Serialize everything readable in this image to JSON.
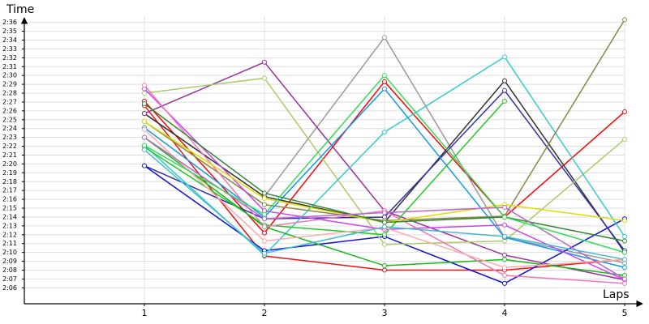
{
  "chart_data": {
    "type": "line",
    "y_label": "Time",
    "x_label": "Laps",
    "xlim": [
      0,
      5
    ],
    "xticks": [
      1,
      2,
      3,
      4,
      5
    ],
    "ylim": [
      124.2,
      156.7
    ],
    "yticks": [
      {
        "value": 126,
        "label": "2:06"
      },
      {
        "value": 127,
        "label": "2:07"
      },
      {
        "value": 128,
        "label": "2:08"
      },
      {
        "value": 129,
        "label": "2:09"
      },
      {
        "value": 130,
        "label": "2:10"
      },
      {
        "value": 131,
        "label": "2:11"
      },
      {
        "value": 132,
        "label": "2:12"
      },
      {
        "value": 133,
        "label": "2:13"
      },
      {
        "value": 134,
        "label": "2:14"
      },
      {
        "value": 135,
        "label": "2:15"
      },
      {
        "value": 136,
        "label": "2:16"
      },
      {
        "value": 137,
        "label": "2:17"
      },
      {
        "value": 138,
        "label": "2:18"
      },
      {
        "value": 139,
        "label": "2:19"
      },
      {
        "value": 140,
        "label": "2:20"
      },
      {
        "value": 141,
        "label": "2:21"
      },
      {
        "value": 142,
        "label": "2:22"
      },
      {
        "value": 143,
        "label": "2:23"
      },
      {
        "value": 144,
        "label": "2:24"
      },
      {
        "value": 145,
        "label": "2:25"
      },
      {
        "value": 146,
        "label": "2:26"
      },
      {
        "value": 147,
        "label": "2:27"
      },
      {
        "value": 148,
        "label": "2:28"
      },
      {
        "value": 149,
        "label": "2:29"
      },
      {
        "value": 150,
        "label": "2:30"
      },
      {
        "value": 151,
        "label": "2:31"
      },
      {
        "value": 152,
        "label": "2:32"
      },
      {
        "value": 153,
        "label": "2:33"
      },
      {
        "value": 154,
        "label": "2:34"
      },
      {
        "value": 155,
        "label": "2:35"
      },
      {
        "value": 156,
        "label": "2:36"
      }
    ],
    "grid": true,
    "x": [
      1,
      2,
      3,
      4,
      5
    ],
    "series": [
      {
        "color": "#ff0000",
        "values": [
          147.1,
          132.2,
          149.3,
          134.0,
          145.9
        ]
      },
      {
        "color": "#ee1111",
        "values": [
          146.6,
          129.6,
          128.0,
          128.0,
          129.2
        ]
      },
      {
        "color": "#999999",
        "values": [
          145.7,
          136.3,
          154.3,
          131.7,
          128.8
        ]
      },
      {
        "color": "#333333",
        "values": [
          145.7,
          136.3,
          133.4,
          149.4,
          130.0
        ]
      },
      {
        "color": "#1010dd",
        "values": [
          139.8,
          130.2,
          131.8,
          126.5,
          133.8
        ]
      },
      {
        "color": "#3030aa",
        "values": [
          139.8,
          133.8,
          134.0,
          148.3,
          130.2
        ]
      },
      {
        "color": "#993399",
        "values": [
          145.7,
          151.5,
          134.7,
          129.7,
          126.9
        ]
      },
      {
        "color": "#aacc66",
        "values": [
          148.0,
          149.7,
          130.9,
          131.3,
          142.8
        ]
      },
      {
        "color": "#33cccc",
        "values": [
          142.1,
          129.7,
          143.6,
          152.1,
          131.8
        ]
      },
      {
        "color": "#888844",
        "values": [
          144.8,
          135.4,
          133.6,
          134.1,
          156.3
        ]
      },
      {
        "color": "#1199ee",
        "values": [
          144.1,
          134.0,
          148.5,
          131.7,
          128.3
        ]
      },
      {
        "color": "#22cc22",
        "values": [
          141.9,
          133.1,
          132.0,
          147.1,
          null
        ]
      },
      {
        "color": "#11bb11",
        "values": [
          143.0,
          132.9,
          128.5,
          129.2,
          127.4
        ]
      },
      {
        "color": "#cc44ee",
        "values": [
          148.5,
          134.7,
          132.6,
          133.1,
          126.9
        ]
      },
      {
        "color": "#ee77bb",
        "values": [
          148.9,
          132.9,
          134.7,
          127.4,
          126.5
        ]
      },
      {
        "color": "#ffaaaa",
        "values": [
          143.9,
          131.3,
          132.8,
          128.3,
          129.2
        ]
      },
      {
        "color": "#dddd00",
        "values": [
          144.8,
          136.1,
          133.4,
          135.4,
          133.6
        ]
      },
      {
        "color": "#338833",
        "values": [
          146.8,
          136.7,
          133.4,
          134.0,
          131.3
        ]
      },
      {
        "color": "#bb66cc",
        "values": [
          143.0,
          133.8,
          134.5,
          135.1,
          127.0
        ]
      },
      {
        "color": "#44bbcc",
        "values": [
          141.6,
          129.9,
          132.9,
          131.8,
          129.2
        ]
      },
      {
        "color": "#33dd55",
        "values": [
          142.1,
          134.3,
          150.0,
          134.0,
          130.0
        ]
      }
    ]
  }
}
